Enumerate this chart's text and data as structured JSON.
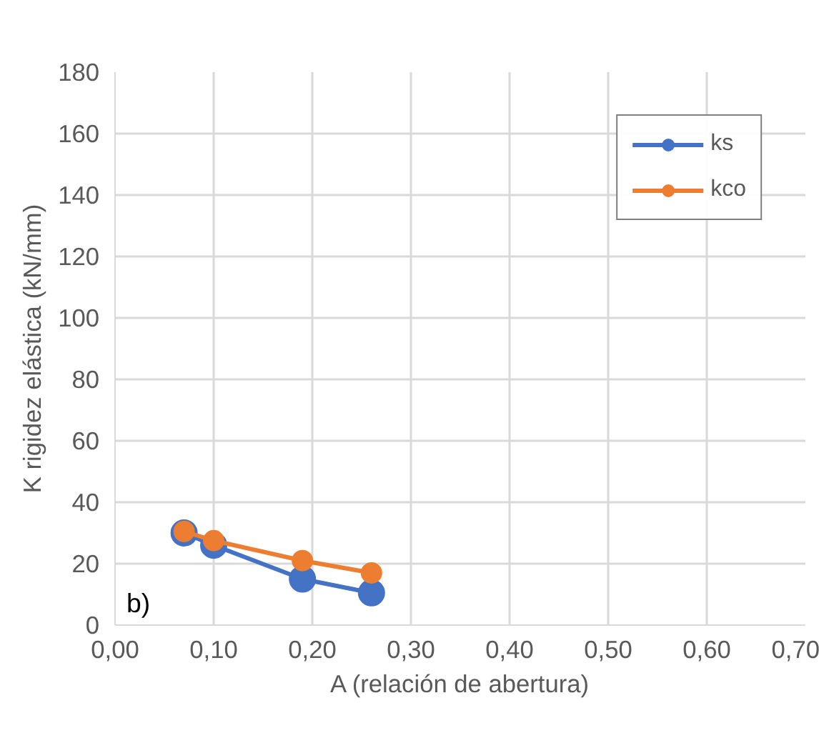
{
  "chart_data": {
    "type": "line",
    "xlabel": "A (relación de abertura)",
    "ylabel": "K rigidez elástica (kN/mm)",
    "x": [
      0.07,
      0.1,
      0.19,
      0.26
    ],
    "series": [
      {
        "name": "ks",
        "color": "#4472c4",
        "values": [
          30,
          26,
          15,
          10.5
        ]
      },
      {
        "name": "kco",
        "color": "#ed7d31",
        "values": [
          30.5,
          27.5,
          21,
          17
        ]
      }
    ],
    "xlim": [
      0,
      0.7
    ],
    "xticks": [
      {
        "value": 0,
        "label": "0,00"
      },
      {
        "value": 0.1,
        "label": "0,10"
      },
      {
        "value": 0.2,
        "label": "0,20"
      },
      {
        "value": 0.3,
        "label": "0,30"
      },
      {
        "value": 0.4,
        "label": "0,40"
      },
      {
        "value": 0.5,
        "label": "0,50"
      },
      {
        "value": 0.6,
        "label": "0,60"
      },
      {
        "value": 0.7,
        "label": "0,70"
      }
    ],
    "ylim": [
      0,
      180
    ],
    "yticks": [
      0,
      20,
      40,
      60,
      80,
      100,
      120,
      140,
      160,
      180
    ],
    "grid": true,
    "legend": "top right",
    "marker": "circle",
    "line_style": "solid",
    "annotations": [
      "b)"
    ]
  }
}
